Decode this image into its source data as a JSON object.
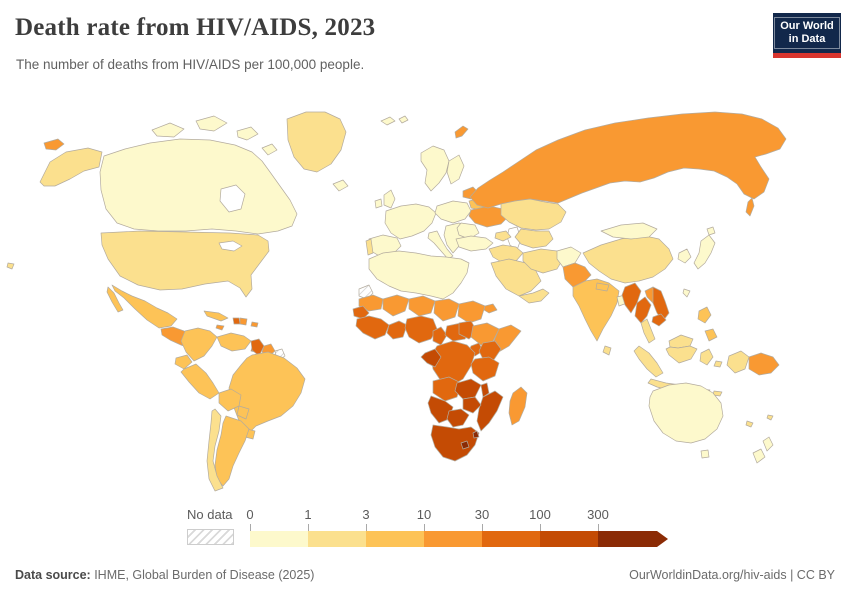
{
  "header": {
    "title": "Death rate from HIV/AIDS, 2023",
    "subtitle": "The number of deaths from HIV/AIDS per 100,000 people.",
    "logo": {
      "line1": "Our World",
      "line2": "in Data"
    }
  },
  "legend": {
    "no_data_label": "No data",
    "tick_labels": [
      "0",
      "1",
      "3",
      "10",
      "30",
      "100",
      "300"
    ]
  },
  "footer": {
    "source_label": "Data source:",
    "source_text": " IHME, Global Burden of Disease (2025)",
    "link": "OurWorldinData.org/hiv-aids",
    "license": " | CC BY"
  },
  "chart_data": {
    "type": "choropleth",
    "title": "Death rate from HIV/AIDS, 2023",
    "metric": "Deaths from HIV/AIDS per 100,000 people",
    "year": 2023,
    "projection": "world map",
    "thresholds": [
      0,
      1,
      3,
      10,
      30,
      100,
      300
    ],
    "bins": [
      {
        "label": "0-1",
        "color": "#fdf9cc"
      },
      {
        "label": "1-3",
        "color": "#fbe08e"
      },
      {
        "label": "3-10",
        "color": "#fdc357"
      },
      {
        "label": "10-30",
        "color": "#f99932"
      },
      {
        "label": "30-100",
        "color": "#e1680f"
      },
      {
        "label": "100-300",
        "color": "#c44b04"
      },
      {
        "label": "300+",
        "color": "#8b2b05"
      }
    ],
    "no_data": {
      "label": "No data",
      "style": "hatched"
    },
    "regions": {
      "canada": 0,
      "alaska": 1,
      "usa": 1,
      "greenland": 1,
      "iceland": 0,
      "svalbard": 0,
      "mexico": 2,
      "central-america": 3,
      "cuba": 2,
      "haiti": 4,
      "dominican-republic": 3,
      "jamaica": 3,
      "puerto-rico": 3,
      "trinidad": 4,
      "hawaii": 1,
      "colombia": 2,
      "venezuela": 2,
      "guyana": 4,
      "suriname": 3,
      "french-guiana": "nd",
      "ecuador": 2,
      "peru": 2,
      "brazil": 2,
      "bolivia": 2,
      "paraguay": 2,
      "uruguay": 2,
      "argentina": 2,
      "chile": 1,
      "scandinavia": 0,
      "finland": 0,
      "uk": 0,
      "ireland": 0,
      "west-europe": 0,
      "spain": 0,
      "portugal": 1,
      "italy": 0,
      "balkans": 0,
      "central-europe": 0,
      "baltics": 3,
      "belarus": 2,
      "ukraine": 3,
      "romania": 0,
      "russia": 3,
      "kazakhstan": 1,
      "central-asia": 1,
      "caucasus": 1,
      "turkey": 0,
      "levant-iraq": 1,
      "saudi-arabia": 1,
      "yemen-oman": 1,
      "iran": 1,
      "afghanistan": 0,
      "pakistan": 3,
      "india": 2,
      "nepal": 2,
      "bangladesh": 0,
      "sri-lanka": 1,
      "china": 1,
      "mongolia": 0,
      "korea": 0,
      "japan": 0,
      "taiwan": 0,
      "myanmar": 4,
      "thailand": 4,
      "laos": 3,
      "vietnam": 4,
      "cambodia": 4,
      "malaysia": 1,
      "indonesia": 1,
      "papua-new-guinea": 3,
      "philippines": 2,
      "north-africa": 0,
      "western-sahara": "nd",
      "mauritania": 3,
      "mali": 3,
      "niger": 3,
      "chad": 3,
      "sudan": 3,
      "eritrea": 3,
      "senegal": 4,
      "guinea-coast": 4,
      "ghana-benin": 4,
      "nigeria": 4,
      "cameroon": 4,
      "central-african-republic": 4,
      "south-sudan": 4,
      "ethiopia": 3,
      "somalia": 3,
      "uganda": 4,
      "kenya": 4,
      "drc": 4,
      "gabon-congo": 5,
      "tanzania": 4,
      "angola": 4,
      "zambia": 5,
      "malawi": 5,
      "mozambique": 5,
      "zimbabwe": 5,
      "namibia": 5,
      "botswana": 5,
      "south-africa": 5,
      "lesotho": 6,
      "eswatini": 6,
      "madagascar": 3,
      "australia": 0,
      "new-zealand": 0,
      "new-caledonia": 1,
      "fiji": 1
    }
  }
}
